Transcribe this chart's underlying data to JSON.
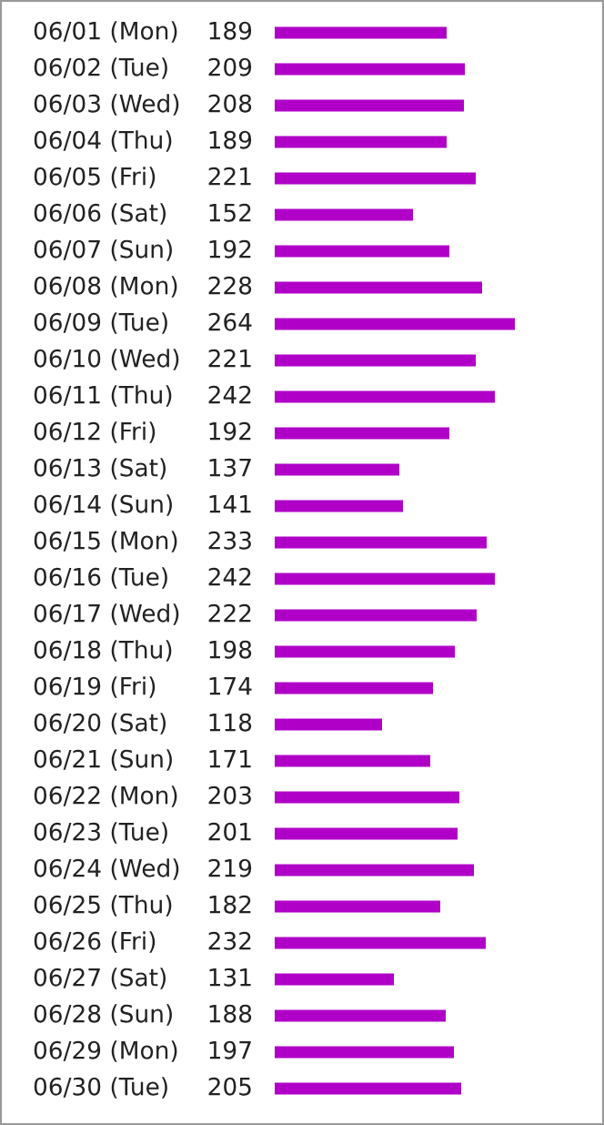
{
  "chart_data": {
    "type": "bar",
    "orientation": "horizontal",
    "data_labels": true,
    "color": "#b000c8",
    "categories": [
      "06/01 (Mon)",
      "06/02 (Tue)",
      "06/03 (Wed)",
      "06/04 (Thu)",
      "06/05 (Fri)",
      "06/06 (Sat)",
      "06/07 (Sun)",
      "06/08 (Mon)",
      "06/09 (Tue)",
      "06/10 (Wed)",
      "06/11 (Thu)",
      "06/12 (Fri)",
      "06/13 (Sat)",
      "06/14 (Sun)",
      "06/15 (Mon)",
      "06/16 (Tue)",
      "06/17 (Wed)",
      "06/18 (Thu)",
      "06/19 (Fri)",
      "06/20 (Sat)",
      "06/21 (Sun)",
      "06/22 (Mon)",
      "06/23 (Tue)",
      "06/24 (Wed)",
      "06/25 (Thu)",
      "06/26 (Fri)",
      "06/27 (Sat)",
      "06/28 (Sun)",
      "06/29 (Mon)",
      "06/30 (Tue)"
    ],
    "values": [
      189,
      209,
      208,
      189,
      221,
      152,
      192,
      228,
      264,
      221,
      242,
      192,
      137,
      141,
      233,
      242,
      222,
      198,
      174,
      118,
      171,
      203,
      201,
      219,
      182,
      232,
      131,
      188,
      197,
      205
    ]
  }
}
